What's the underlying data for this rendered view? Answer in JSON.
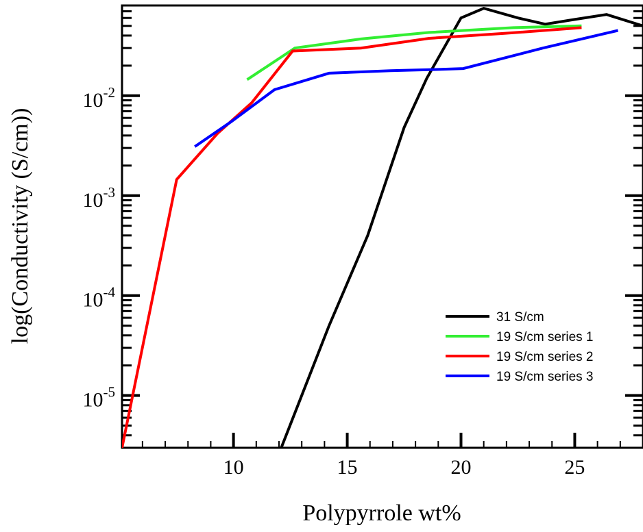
{
  "chart_data": {
    "type": "line",
    "title": "",
    "xlabel": "Polypyrrole wt%",
    "ylabel": "log(Conductivity (S/cm))",
    "xlim": [
      5.1,
      28
    ],
    "ylim": [
      3e-06,
      0.08
    ],
    "yscale": "log",
    "x_ticks": [
      10,
      15,
      20,
      25
    ],
    "y_ticks": [
      {
        "value": 1e-05,
        "base": "10",
        "exp": "-5"
      },
      {
        "value": 0.0001,
        "base": "10",
        "exp": "-4"
      },
      {
        "value": 0.001,
        "base": "10",
        "exp": "-3"
      },
      {
        "value": 0.01,
        "base": "10",
        "exp": "-2"
      }
    ],
    "grid": false,
    "legend_position": "bottom-right",
    "series": [
      {
        "name": "31 S/cm",
        "color": "#000000",
        "x": [
          12.1,
          14.2,
          15.9,
          17.5,
          18.5,
          20.0,
          21.0,
          22.5,
          23.7,
          25.0,
          26.4,
          28.0
        ],
        "y": [
          3e-06,
          5e-05,
          0.0004,
          0.0048,
          0.015,
          0.06,
          0.075,
          0.06,
          0.052,
          0.058,
          0.065,
          0.05
        ]
      },
      {
        "name": "19 S/cm series 1",
        "color": "#33ee33",
        "x": [
          10.6,
          12.7,
          15.6,
          18.6,
          22.3,
          25.3
        ],
        "y": [
          0.0145,
          0.03,
          0.037,
          0.043,
          0.048,
          0.05
        ]
      },
      {
        "name": "19 S/cm series 2",
        "color": "#ff0000",
        "x": [
          5.1,
          7.5,
          9.3,
          10.8,
          12.6,
          15.6,
          18.6,
          21.9,
          25.3
        ],
        "y": [
          3e-06,
          0.00145,
          0.0042,
          0.0085,
          0.028,
          0.03,
          0.0375,
          0.042,
          0.048
        ]
      },
      {
        "name": "19 S/cm series 3",
        "color": "#0000ff",
        "x": [
          8.3,
          9.9,
          11.8,
          14.2,
          16.9,
          18.9,
          20.1,
          23.6,
          26.9
        ],
        "y": [
          0.0031,
          0.0055,
          0.0115,
          0.0168,
          0.0178,
          0.0183,
          0.0187,
          0.03,
          0.045
        ]
      }
    ]
  }
}
